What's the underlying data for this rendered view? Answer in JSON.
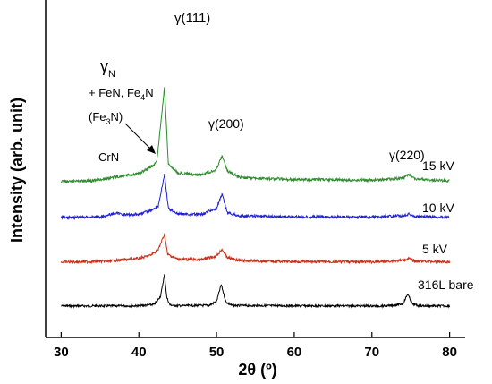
{
  "chart_data": {
    "type": "line",
    "xlabel": "2θ (º)",
    "ylabel": "Intensity (arb. unit)",
    "xlim": [
      28,
      82
    ],
    "x_ticks": [
      30,
      40,
      50,
      60,
      70,
      80
    ],
    "x_tick_labels": [
      "30",
      "40",
      "50",
      "60",
      "70",
      "80"
    ],
    "grid": false,
    "series": [
      {
        "name": "316L bare",
        "color": "#000000",
        "points": [
          [
            30,
            0.05
          ],
          [
            36,
            0.05
          ],
          [
            40,
            0.1
          ],
          [
            42,
            0.6
          ],
          [
            42.8,
            3.5
          ],
          [
            43.3,
            11
          ],
          [
            43.6,
            3
          ],
          [
            44,
            0.4
          ],
          [
            45,
            0.15
          ],
          [
            49,
            0.25
          ],
          [
            50,
            1.6
          ],
          [
            50.6,
            7.5
          ],
          [
            51.2,
            1.5
          ],
          [
            52,
            0.2
          ],
          [
            60,
            0.1
          ],
          [
            72,
            0.05
          ],
          [
            74,
            0.8
          ],
          [
            74.6,
            4.2
          ],
          [
            75.2,
            0.8
          ],
          [
            76,
            0.1
          ],
          [
            80,
            0.05
          ]
        ]
      },
      {
        "name": "5 kV",
        "color": "#c83018",
        "points": [
          [
            30,
            0.05
          ],
          [
            36,
            0.3
          ],
          [
            38,
            0.8
          ],
          [
            40,
            1.2
          ],
          [
            41.5,
            2.2
          ],
          [
            42.5,
            4
          ],
          [
            43.3,
            9
          ],
          [
            43.7,
            2.5
          ],
          [
            45,
            1
          ],
          [
            48,
            0.8
          ],
          [
            50,
            2
          ],
          [
            50.7,
            4.2
          ],
          [
            51.4,
            1.5
          ],
          [
            53,
            0.5
          ],
          [
            60,
            0.2
          ],
          [
            70,
            0.1
          ],
          [
            74,
            0.6
          ],
          [
            74.7,
            1.2
          ],
          [
            75.5,
            0.4
          ],
          [
            80,
            0.1
          ]
        ]
      },
      {
        "name": "10 kV",
        "color": "#1f1fd6",
        "points": [
          [
            30,
            0.05
          ],
          [
            35,
            0.2
          ],
          [
            37,
            1.4
          ],
          [
            38.5,
            0.9
          ],
          [
            40,
            1.1
          ],
          [
            41.5,
            2.3
          ],
          [
            42.5,
            3.8
          ],
          [
            43.3,
            14
          ],
          [
            43.8,
            3
          ],
          [
            45,
            1.2
          ],
          [
            48,
            1
          ],
          [
            50,
            3
          ],
          [
            50.7,
            7.6
          ],
          [
            51.4,
            1.6
          ],
          [
            53,
            0.5
          ],
          [
            60,
            0.25
          ],
          [
            70,
            0.15
          ],
          [
            74,
            0.6
          ],
          [
            74.7,
            1.2
          ],
          [
            75.5,
            0.3
          ],
          [
            80,
            0.1
          ]
        ]
      },
      {
        "name": "15 kV",
        "color": "#2e8b2e",
        "points": [
          [
            30,
            0.05
          ],
          [
            34,
            0.2
          ],
          [
            36,
            0.8
          ],
          [
            38,
            1.4
          ],
          [
            40,
            1.9
          ],
          [
            41.5,
            3.4
          ],
          [
            42.3,
            4.5
          ],
          [
            43.3,
            22
          ],
          [
            43.8,
            4
          ],
          [
            45,
            2
          ],
          [
            48,
            1.6
          ],
          [
            50,
            2.8
          ],
          [
            50.7,
            6.1
          ],
          [
            51.4,
            2.5
          ],
          [
            53,
            1
          ],
          [
            60,
            0.5
          ],
          [
            70,
            0.35
          ],
          [
            74,
            0.8
          ],
          [
            74.7,
            1.8
          ],
          [
            75.5,
            0.6
          ],
          [
            80,
            0.2
          ]
        ]
      }
    ],
    "peak_labels": [
      "γ(111)",
      "γ(200)",
      "γ(220)"
    ],
    "annotations": {
      "gamma_n_main": "γ",
      "gamma_n_sub": "N",
      "phases_a": "+ FeN, Fe",
      "phases_sub": "4",
      "phases_b": "N",
      "fe3n_a": "(Fe",
      "fe3n_sub": "3",
      "fe3n_b": "N)",
      "crn": "CrN"
    }
  }
}
